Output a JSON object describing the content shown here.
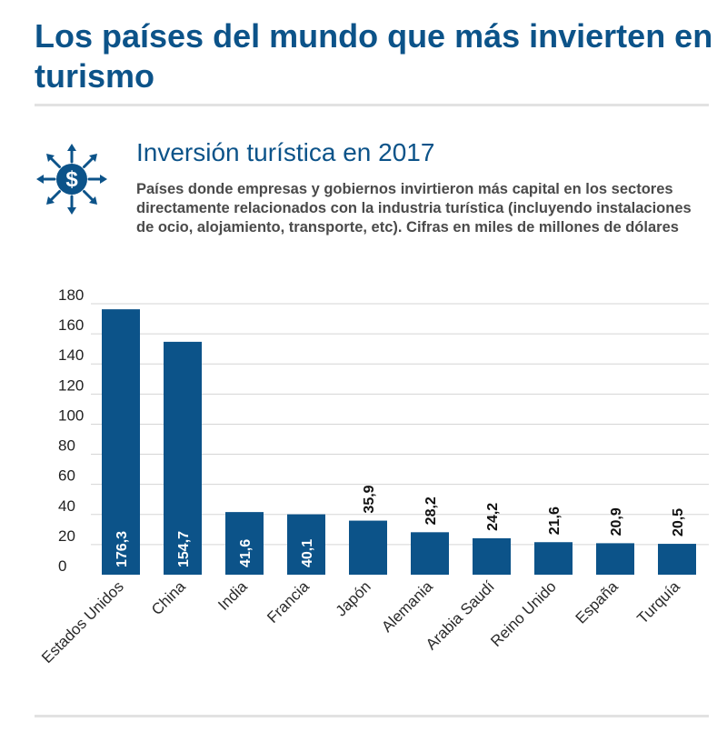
{
  "header": {
    "title": "Los países del mundo que más invierten en turismo"
  },
  "section": {
    "subtitle": "Inversión turística en 2017",
    "description": "Países donde empresas y gobiernos invirtieron más capital en los sectores directamente relacionados con la industria turística (incluyendo instalaciones de ocio, alojamiento, transporte, etc). Cifras en miles de millones de dólares",
    "icon": "dollar-arrows-icon"
  },
  "colors": {
    "title": "#0c5389",
    "bar": "#0c5389",
    "gridline": "#d5d5d5",
    "text": "#4a4a4a"
  },
  "chart_data": {
    "type": "bar",
    "categories": [
      "Estados Unidos",
      "China",
      "India",
      "Francia",
      "Japón",
      "Alemania",
      "Arabia Saudí",
      "Reino Unido",
      "España",
      "Turquía"
    ],
    "values": [
      176.3,
      154.7,
      41.6,
      40.1,
      35.9,
      28.2,
      24.2,
      21.6,
      20.9,
      20.5
    ],
    "data_labels": [
      "176,3",
      "154,7",
      "41,6",
      "40,1",
      "35,9",
      "28,2",
      "24,2",
      "21,6",
      "20,9",
      "20,5"
    ],
    "y_ticks": [
      0,
      20,
      40,
      60,
      80,
      100,
      120,
      140,
      160,
      180
    ],
    "ylim": [
      0,
      180
    ],
    "grid": true,
    "xlabel": "",
    "ylabel": ""
  }
}
